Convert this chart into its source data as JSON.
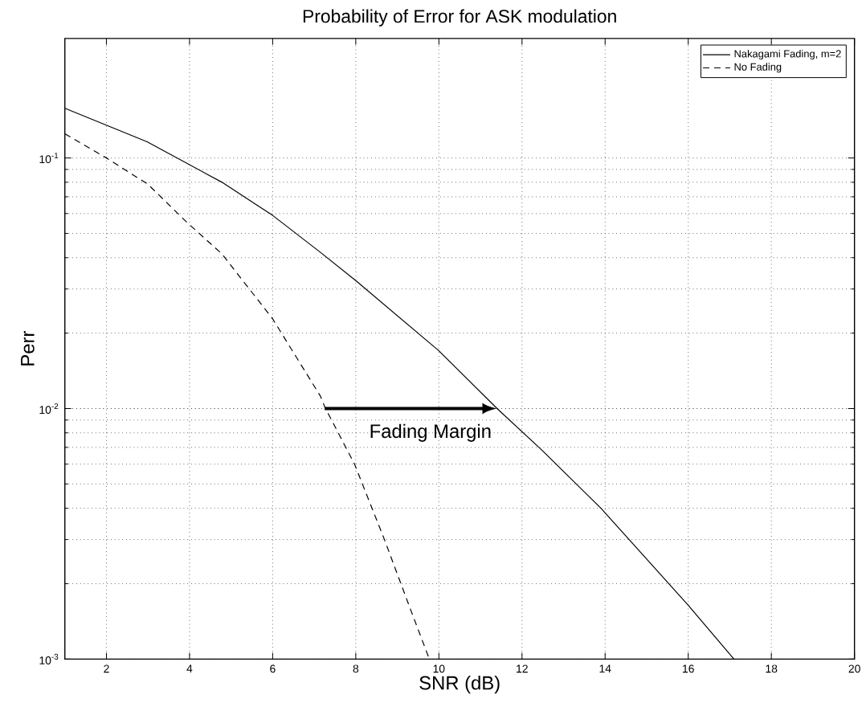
{
  "chart_data": {
    "type": "line",
    "title": "Probability of Error for ASK modulation",
    "xlabel": "SNR (dB)",
    "ylabel": "Perr",
    "series": [
      {
        "name": "Nakagami Fading, m=2",
        "color": "#000000",
        "line_style": "solid",
        "x": [
          1,
          2.98,
          4.78,
          6,
          7.15,
          8,
          10,
          11.4,
          12.46,
          13.9,
          16,
          17.1
        ],
        "values": [
          0.158,
          0.116,
          0.08,
          0.059,
          0.042,
          0.0324,
          0.017,
          0.01,
          0.00687,
          0.004,
          0.00164,
          0.001
        ]
      },
      {
        "name": "No Fading",
        "color": "#000000",
        "line_style": "dashed",
        "x": [
          1,
          2,
          3,
          3.93,
          4.78,
          6,
          7.15,
          7.26,
          7.97,
          8.69,
          9.25,
          9.77
        ],
        "values": [
          0.125,
          0.1,
          0.0785,
          0.0555,
          0.0414,
          0.0228,
          0.0112,
          0.0101,
          0.006,
          0.003,
          0.00169,
          0.001
        ]
      }
    ],
    "annotations": [
      "Fading Margin"
    ],
    "xlim": [
      1,
      20
    ],
    "xticks": [
      2,
      4,
      6,
      8,
      10,
      12,
      14,
      16,
      18,
      20
    ],
    "ylim": [
      0.001,
      0.3
    ],
    "yticks": [
      {
        "value": 0.001,
        "label": "10$^{-3}$"
      },
      {
        "value": 0.01,
        "label": "10$^{-2}$"
      },
      {
        "value": 0.1,
        "label": "10$^{-1}$"
      }
    ],
    "log": "y",
    "grid": true,
    "legend": "top right",
    "marker": "none"
  }
}
